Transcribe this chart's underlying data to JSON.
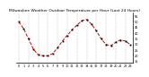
{
  "title": "Milwaukee Weather Outdoor Temperature per Hour (Last 24 Hours)",
  "hours": [
    0,
    1,
    2,
    3,
    4,
    5,
    6,
    7,
    8,
    9,
    10,
    11,
    12,
    13,
    14,
    15,
    16,
    17,
    18,
    19,
    20,
    21,
    22,
    23
  ],
  "temps": [
    50,
    44,
    35,
    26,
    21,
    20,
    20,
    22,
    27,
    33,
    38,
    43,
    47,
    51,
    52,
    48,
    42,
    35,
    30,
    29,
    32,
    34,
    33,
    30
  ],
  "line_color": "#cc0000",
  "marker_color": "#000000",
  "grid_color": "#888888",
  "bg_color": "#ffffff",
  "ylim_min": 14,
  "ylim_max": 58,
  "ytick_vals": [
    15,
    20,
    25,
    30,
    35,
    40,
    45,
    50,
    55
  ],
  "ytick_labels": [
    "15",
    "20",
    "25",
    "30",
    "35",
    "40",
    "45",
    "50",
    "55"
  ],
  "xtick_vals": [
    0,
    1,
    2,
    3,
    4,
    5,
    6,
    7,
    8,
    9,
    10,
    11,
    12,
    13,
    14,
    15,
    16,
    17,
    18,
    19,
    20,
    21,
    22,
    23
  ],
  "vgrid_every": 2,
  "title_fontsize": 3.2,
  "tick_fontsize": 2.5,
  "line_width": 0.7,
  "marker_size": 1.3
}
